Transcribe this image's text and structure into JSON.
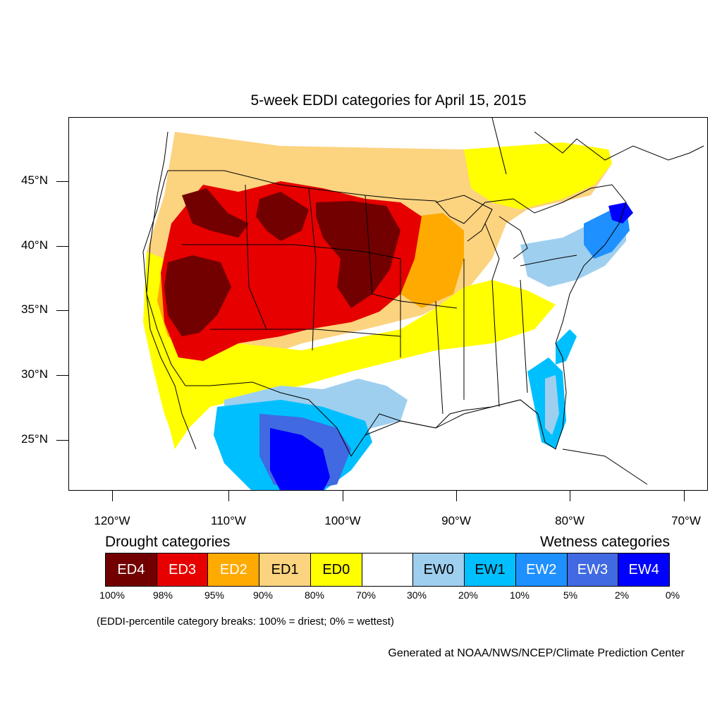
{
  "title": "5-week EDDI categories for April 15, 2015",
  "lat_labels": [
    "45°N",
    "40°N",
    "35°N",
    "30°N",
    "25°N"
  ],
  "lon_labels": [
    "120°W",
    "110°W",
    "100°W",
    "90°W",
    "80°W",
    "70°W"
  ],
  "legend": {
    "drought_heading": "Drought categories",
    "wetness_heading": "Wetness categories",
    "categories": [
      {
        "label": "ED4",
        "color": "#730000",
        "text_color": "#ffffff"
      },
      {
        "label": "ED3",
        "color": "#e60000",
        "text_color": "#ffffff"
      },
      {
        "label": "ED2",
        "color": "#ffaa00",
        "text_color": "#ffffff"
      },
      {
        "label": "ED1",
        "color": "#fcd37f",
        "text_color": "#000000"
      },
      {
        "label": "ED0",
        "color": "#ffff00",
        "text_color": "#000000"
      },
      {
        "label": "",
        "color": "#ffffff",
        "text_color": "#000000"
      },
      {
        "label": "EW0",
        "color": "#9fcfef",
        "text_color": "#000000"
      },
      {
        "label": "EW1",
        "color": "#00bfff",
        "text_color": "#000000"
      },
      {
        "label": "EW2",
        "color": "#1e90ff",
        "text_color": "#ffffff"
      },
      {
        "label": "EW3",
        "color": "#4169e1",
        "text_color": "#ffffff"
      },
      {
        "label": "EW4",
        "color": "#0000ff",
        "text_color": "#ffffff"
      }
    ],
    "percentiles": [
      "100%",
      "98%",
      "95%",
      "90%",
      "80%",
      "70%",
      "30%",
      "20%",
      "10%",
      "5%",
      "2%",
      "0%"
    ]
  },
  "note": "(EDDI-percentile category breaks: 100% = driest; 0% = wettest)",
  "credit": "Generated at NOAA/NWS/NCEP/Climate Prediction Center"
}
